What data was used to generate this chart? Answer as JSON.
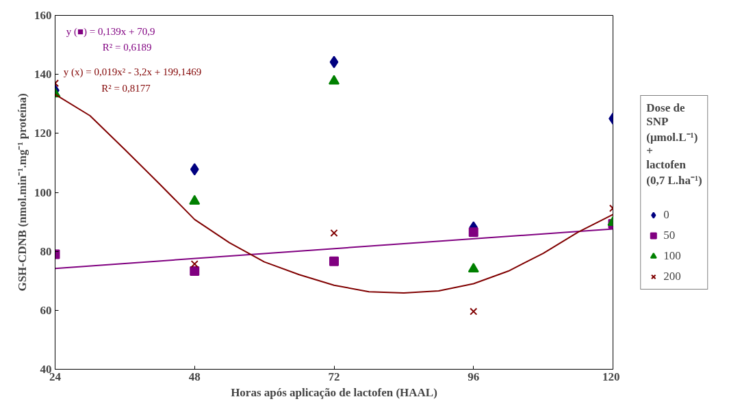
{
  "chart_data": {
    "type": "scatter",
    "xlabel": "Horas após aplicação de lactofen (HAAL)",
    "ylabel": "GSH-CDNB (nmol.min⁻¹.mg⁻¹ proteína)",
    "legend_title": "Dose de\nSNP\n(μmol.L⁻¹)\n+\nlactofen\n(0,7 L.ha⁻¹)",
    "x": [
      24,
      48,
      72,
      96,
      120
    ],
    "series": [
      {
        "name": "0",
        "color": "#000080",
        "marker": "diamond",
        "values": [
          134.6,
          107.8,
          144.2,
          88.1,
          125.0
        ]
      },
      {
        "name": "50",
        "color": "#800080",
        "marker": "square",
        "values": [
          79.0,
          73.3,
          76.6,
          86.5,
          89.3
        ]
      },
      {
        "name": "100",
        "color": "#008000",
        "marker": "triangle",
        "values": [
          133.4,
          97.0,
          137.7,
          74.0,
          89.8
        ]
      },
      {
        "name": "200",
        "color": "#800000",
        "marker": "cross",
        "values": [
          137.0,
          75.7,
          86.2,
          59.6,
          94.6
        ]
      },
      {
        "type": "line",
        "color": "#800080",
        "marker": "none",
        "x": [
          24,
          120
        ],
        "values": [
          74.2,
          87.6
        ]
      },
      {
        "type": "line",
        "color": "#800000",
        "marker": "none",
        "x": [
          24,
          30,
          36,
          42,
          48,
          54,
          60,
          66,
          72,
          78,
          84,
          90,
          96,
          102,
          108,
          114,
          120
        ],
        "values": [
          133.2,
          126.0,
          114.5,
          102.8,
          90.8,
          82.9,
          76.4,
          72.1,
          68.5,
          66.3,
          65.9,
          66.6,
          69.0,
          73.3,
          79.3,
          86.5,
          92.5
        ]
      }
    ],
    "annotations": [
      "y (■) = 0,139x + 70,9",
      "R² = 0,6189",
      "y (x) = 0,019x² - 3,2x + 199,1469",
      "R² = 0,8177"
    ],
    "xlim": [
      24,
      120
    ],
    "ylim": [
      40,
      160
    ],
    "xticks": [
      24,
      48,
      72,
      96,
      120
    ],
    "yticks": [
      40,
      60,
      80,
      100,
      120,
      140,
      160
    ],
    "grid": false,
    "legend": "right"
  }
}
